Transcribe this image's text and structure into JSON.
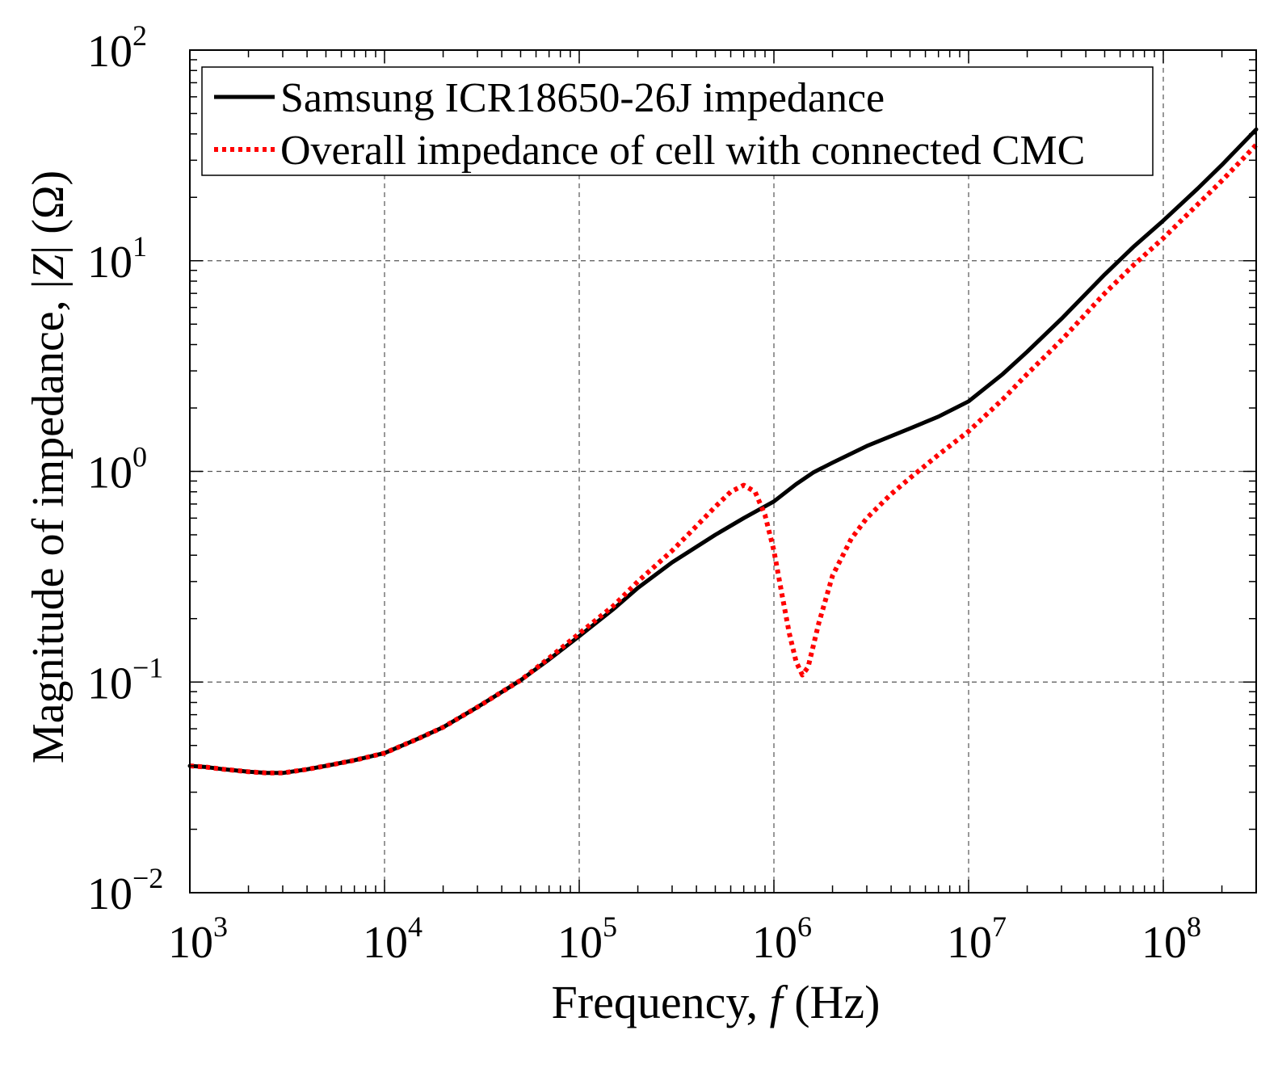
{
  "chart_data": {
    "type": "line",
    "xscale": "log",
    "yscale": "log",
    "xlim": [
      1000,
      300000000
    ],
    "ylim": [
      0.01,
      100
    ],
    "xlabel_parts": [
      "Frequency, ",
      "f",
      " (Hz)"
    ],
    "ylabel_parts": [
      "Magnitude of impedance, |",
      "Z",
      "| (Ω)"
    ],
    "xticks": [
      {
        "value": 1000,
        "base": "10",
        "exp": "3"
      },
      {
        "value": 10000,
        "base": "10",
        "exp": "4"
      },
      {
        "value": 100000,
        "base": "10",
        "exp": "5"
      },
      {
        "value": 1000000,
        "base": "10",
        "exp": "6"
      },
      {
        "value": 10000000,
        "base": "10",
        "exp": "7"
      },
      {
        "value": 100000000,
        "base": "10",
        "exp": "8"
      }
    ],
    "yticks": [
      {
        "value": 0.01,
        "base": "10",
        "exp": "−2"
      },
      {
        "value": 0.1,
        "base": "10",
        "exp": "−1"
      },
      {
        "value": 1,
        "base": "10",
        "exp": "0"
      },
      {
        "value": 10,
        "base": "10",
        "exp": "1"
      },
      {
        "value": 100,
        "base": "10",
        "exp": "2"
      }
    ],
    "grid": true,
    "legend_position": "top-left",
    "series": [
      {
        "name": "Samsung ICR18650-26J impedance",
        "color": "#000000",
        "style": "solid",
        "x": [
          1000,
          1200,
          1500,
          2000,
          2500,
          3000,
          4000,
          5000,
          7000,
          10000,
          15000,
          20000,
          30000,
          50000,
          70000,
          100000,
          150000,
          200000,
          300000,
          500000,
          700000,
          1000000,
          1300000,
          1600000,
          2000000,
          3000000,
          5000000,
          7000000,
          10000000,
          15000000,
          20000000,
          30000000,
          50000000,
          70000000,
          100000000,
          150000000,
          200000000,
          300000000
        ],
        "y": [
          0.04,
          0.0395,
          0.0385,
          0.0375,
          0.037,
          0.037,
          0.0385,
          0.04,
          0.0425,
          0.046,
          0.054,
          0.061,
          0.076,
          0.102,
          0.128,
          0.165,
          0.222,
          0.28,
          0.37,
          0.5,
          0.6,
          0.72,
          0.87,
          0.99,
          1.1,
          1.32,
          1.6,
          1.82,
          2.15,
          2.9,
          3.7,
          5.3,
          8.6,
          11.6,
          15.5,
          22.0,
          28.5,
          42.0
        ]
      },
      {
        "name": "Overall impedance of cell with connected CMC",
        "color": "#ff0000",
        "style": "dotted",
        "x": [
          1000,
          1200,
          1500,
          2000,
          2500,
          3000,
          4000,
          5000,
          7000,
          10000,
          15000,
          20000,
          30000,
          50000,
          70000,
          100000,
          150000,
          200000,
          300000,
          400000,
          500000,
          600000,
          700000,
          800000,
          900000,
          1000000,
          1100000,
          1200000,
          1300000,
          1400000,
          1500000,
          1700000,
          2000000,
          2500000,
          3000000,
          4000000,
          5000000,
          7000000,
          10000000,
          15000000,
          20000000,
          30000000,
          50000000,
          70000000,
          100000000,
          150000000,
          200000000,
          300000000
        ],
        "y": [
          0.04,
          0.0395,
          0.0385,
          0.0375,
          0.037,
          0.037,
          0.0385,
          0.04,
          0.0425,
          0.046,
          0.054,
          0.061,
          0.076,
          0.102,
          0.13,
          0.17,
          0.23,
          0.3,
          0.42,
          0.55,
          0.68,
          0.8,
          0.86,
          0.8,
          0.62,
          0.42,
          0.26,
          0.17,
          0.125,
          0.108,
          0.118,
          0.19,
          0.32,
          0.48,
          0.6,
          0.78,
          0.93,
          1.2,
          1.55,
          2.2,
          2.9,
          4.2,
          7.0,
          9.5,
          12.8,
          18.5,
          24.0,
          35.5
        ]
      }
    ]
  }
}
